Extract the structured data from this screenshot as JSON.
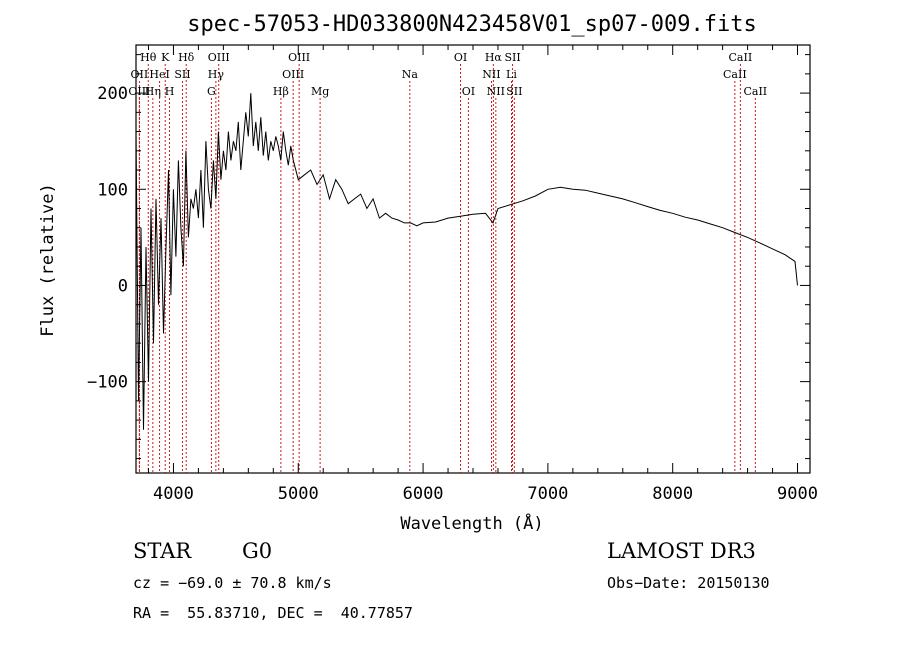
{
  "chart_data": {
    "type": "line",
    "title": "spec-57053-HD033800N423458V01_sp07-009.fits",
    "xlabel": "Wavelength (Å)",
    "ylabel": "Flux (relative)",
    "xlim": [
      3700,
      9100
    ],
    "ylim": [
      -195,
      250
    ],
    "xticks": [
      4000,
      5000,
      6000,
      7000,
      8000,
      9000
    ],
    "xtick_labels": [
      "4000",
      "5000",
      "6000",
      "7000",
      "8000",
      "9000"
    ],
    "yticks": [
      -100,
      0,
      100,
      200
    ],
    "ytick_labels": [
      "−100",
      "0",
      "100",
      "200"
    ],
    "series": [
      {
        "name": "spectrum",
        "x": [
          3700,
          3720,
          3740,
          3760,
          3780,
          3800,
          3820,
          3840,
          3860,
          3880,
          3900,
          3920,
          3940,
          3960,
          3980,
          4000,
          4020,
          4040,
          4060,
          4080,
          4100,
          4120,
          4140,
          4160,
          4180,
          4200,
          4220,
          4240,
          4260,
          4280,
          4300,
          4320,
          4340,
          4360,
          4380,
          4400,
          4420,
          4440,
          4460,
          4480,
          4500,
          4520,
          4540,
          4560,
          4580,
          4600,
          4620,
          4640,
          4660,
          4680,
          4700,
          4720,
          4740,
          4760,
          4780,
          4800,
          4820,
          4840,
          4860,
          4880,
          4900,
          4920,
          4940,
          4960,
          4980,
          5000,
          5050,
          5100,
          5150,
          5200,
          5250,
          5300,
          5350,
          5400,
          5450,
          5500,
          5550,
          5600,
          5650,
          5700,
          5750,
          5800,
          5850,
          5900,
          5950,
          6000,
          6100,
          6200,
          6300,
          6400,
          6500,
          6560,
          6600,
          6700,
          6800,
          6900,
          7000,
          7100,
          7200,
          7300,
          7400,
          7500,
          7600,
          7700,
          7800,
          7900,
          8000,
          8100,
          8200,
          8300,
          8400,
          8500,
          8600,
          8700,
          8800,
          8900,
          8980,
          9000
        ],
        "y": [
          160,
          -120,
          60,
          -150,
          40,
          -100,
          80,
          -60,
          90,
          -20,
          70,
          -50,
          40,
          120,
          -10,
          100,
          30,
          130,
          60,
          20,
          140,
          50,
          90,
          80,
          100,
          70,
          120,
          60,
          150,
          100,
          80,
          130,
          90,
          160,
          110,
          140,
          120,
          160,
          130,
          150,
          140,
          170,
          120,
          150,
          180,
          155,
          200,
          145,
          170,
          140,
          175,
          135,
          160,
          130,
          150,
          140,
          155,
          145,
          130,
          160,
          140,
          125,
          145,
          130,
          120,
          110,
          115,
          120,
          105,
          115,
          90,
          110,
          100,
          85,
          90,
          95,
          80,
          90,
          70,
          75,
          70,
          68,
          65,
          65,
          62,
          65,
          66,
          70,
          72,
          74,
          75,
          65,
          80,
          84,
          88,
          93,
          100,
          102,
          100,
          99,
          96,
          93,
          90,
          86,
          82,
          78,
          75,
          71,
          68,
          64,
          60,
          55,
          50,
          44,
          38,
          32,
          25,
          0
        ]
      }
    ],
    "emission_lines": [
      {
        "label": "Hθ",
        "wavelength": 3798,
        "row": 1
      },
      {
        "label": "OII",
        "wavelength": 3727,
        "row": 2
      },
      {
        "label": "OIII",
        "wavelength": 3727,
        "row": 3
      },
      {
        "label": "Hη",
        "wavelength": 3835,
        "row": 3
      },
      {
        "label": "HeI",
        "wavelength": 3889,
        "row": 2
      },
      {
        "label": "K",
        "wavelength": 3934,
        "row": 1
      },
      {
        "label": "H",
        "wavelength": 3969,
        "row": 3
      },
      {
        "label": "SII",
        "wavelength": 4072,
        "row": 2
      },
      {
        "label": "Hδ",
        "wavelength": 4102,
        "row": 1
      },
      {
        "label": "OIII",
        "wavelength": 4363,
        "row": 1
      },
      {
        "label": "Hγ",
        "wavelength": 4340,
        "row": 2
      },
      {
        "label": "G",
        "wavelength": 4304,
        "row": 3
      },
      {
        "label": "Hβ",
        "wavelength": 4861,
        "row": 3
      },
      {
        "label": "OIII",
        "wavelength": 4959,
        "row": 2
      },
      {
        "label": "OIII",
        "wavelength": 5007,
        "row": 1
      },
      {
        "label": "Mg",
        "wavelength": 5175,
        "row": 3
      },
      {
        "label": "Na",
        "wavelength": 5894,
        "row": 2
      },
      {
        "label": "OI",
        "wavelength": 6300,
        "row": 1
      },
      {
        "label": "OI",
        "wavelength": 6363,
        "row": 3
      },
      {
        "label": "NII",
        "wavelength": 6548,
        "row": 2
      },
      {
        "label": "Hα",
        "wavelength": 6563,
        "row": 1
      },
      {
        "label": "NII",
        "wavelength": 6583,
        "row": 3
      },
      {
        "label": "SII",
        "wavelength": 6717,
        "row": 1
      },
      {
        "label": "Li",
        "wavelength": 6708,
        "row": 2
      },
      {
        "label": "SII",
        "wavelength": 6731,
        "row": 3
      },
      {
        "label": "CaII",
        "wavelength": 8498,
        "row": 2
      },
      {
        "label": "CaII",
        "wavelength": 8542,
        "row": 1
      },
      {
        "label": "CaII",
        "wavelength": 8662,
        "row": 3
      }
    ]
  },
  "info": {
    "object_class": "STAR",
    "subclass": "G0",
    "survey": "LAMOST DR3",
    "redshift": "cz = −69.0 ± 70.8 km/s",
    "obs_date": "Obs−Date: 20150130",
    "coords": "RA =  55.83710, DEC =  40.77857"
  },
  "colors": {
    "spectrum": "#000000",
    "lines": "#cc0000",
    "axes": "#000000"
  }
}
